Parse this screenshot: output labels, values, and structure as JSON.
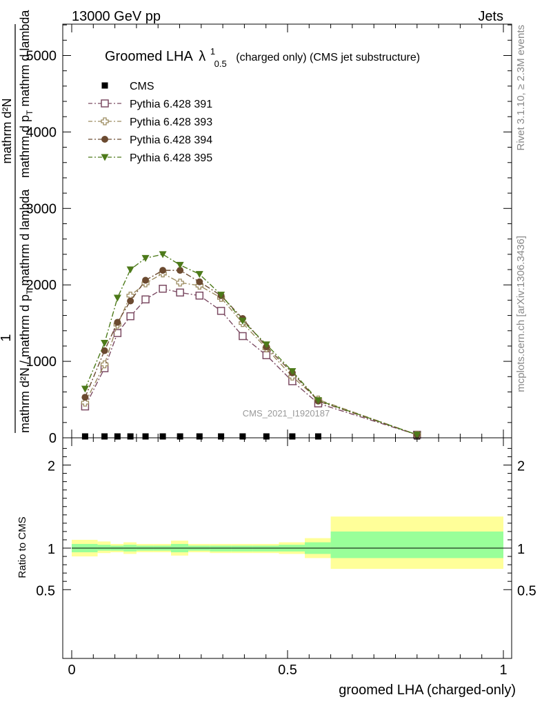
{
  "header": {
    "left": "13000 GeV pp",
    "right": "Jets"
  },
  "side_labels": {
    "rivet": "Rivet 3.1.10, ≥ 2.3M events",
    "mcplots": "mcplots.cern.ch [arXiv:1306.3436]"
  },
  "watermark": "CMS_2021_I1920187",
  "chart_data": [
    {
      "type": "line",
      "title": {
        "main": "Groomed LHA",
        "symbol": "λ",
        "sup": "1",
        "sub": "0.5",
        "rest": "(charged only) (CMS jet substructure)"
      },
      "ylabel": {
        "one": "1",
        "denominator": "mathrm d²N / mathrm d p",
        "denominator_sub": "T",
        "denominator_tail": " mathrm d lambda",
        "numerator": "mathrm d²N",
        "numerator_mid": "mathrm d p",
        "numerator_mid_sub": "T",
        "numerator_tail": " mathrm d lambda"
      },
      "ylim": [
        0,
        5400
      ],
      "xlim": [
        -0.02,
        1.02
      ],
      "yticks": [
        0,
        1000,
        2000,
        3000,
        4000,
        5000
      ],
      "ytick_labels": [
        "0",
        "1000",
        "2000",
        "3000",
        "4000",
        "5000"
      ],
      "legend_position": "top-left",
      "x": [
        0.031,
        0.076,
        0.106,
        0.136,
        0.171,
        0.211,
        0.251,
        0.296,
        0.346,
        0.396,
        0.451,
        0.511,
        0.571,
        0.8
      ],
      "series": [
        {
          "name": "CMS",
          "marker": "square-filled",
          "color": "#000000",
          "values": [
            0,
            0,
            0,
            0,
            0,
            0,
            0,
            0,
            0,
            0,
            0,
            0,
            0,
            0
          ]
        },
        {
          "name": "Pythia 6.428 391",
          "marker": "square-open",
          "color": "#7b4a62",
          "values": [
            410,
            910,
            1370,
            1590,
            1810,
            1950,
            1900,
            1860,
            1660,
            1330,
            1080,
            740,
            450,
            40
          ]
        },
        {
          "name": "Pythia 6.428 393",
          "marker": "cross-open",
          "color": "#9b8a5e",
          "values": [
            460,
            960,
            1480,
            1860,
            2020,
            2150,
            2030,
            1990,
            1830,
            1500,
            1170,
            800,
            500,
            40
          ]
        },
        {
          "name": "Pythia 6.428 394",
          "marker": "circle-filled",
          "color": "#6b4a30",
          "values": [
            530,
            1140,
            1510,
            1790,
            2060,
            2190,
            2190,
            2040,
            1860,
            1560,
            1190,
            850,
            480,
            40
          ]
        },
        {
          "name": "Pythia 6.428 395",
          "marker": "triangle-down-filled",
          "color": "#4d7a1a",
          "values": [
            640,
            1240,
            1830,
            2200,
            2350,
            2400,
            2260,
            2140,
            1870,
            1530,
            1220,
            870,
            490,
            40
          ]
        }
      ]
    },
    {
      "type": "area",
      "ylabel": "Ratio to CMS",
      "xlabel": "groomed LHA (charged-only)",
      "ylim": [
        0.35,
        2.3
      ],
      "xlim": [
        -0.02,
        1.02
      ],
      "yticks": [
        0.5,
        1,
        2
      ],
      "ytick_labels": [
        "0.5",
        "1",
        "2"
      ],
      "xticks": [
        0,
        0.5,
        1
      ],
      "xtick_labels": [
        "0",
        "0.5",
        "1"
      ],
      "reference_line": 1,
      "band_colors": {
        "inner": "#99ff99",
        "outer": "#ffff99"
      },
      "bins": [
        {
          "x0": 0.0,
          "x1": 0.06,
          "inner": [
            0.95,
            1.05
          ],
          "outer": [
            0.9,
            1.1
          ]
        },
        {
          "x0": 0.06,
          "x1": 0.09,
          "inner": [
            0.97,
            1.04
          ],
          "outer": [
            0.94,
            1.08
          ]
        },
        {
          "x0": 0.09,
          "x1": 0.12,
          "inner": [
            0.97,
            1.03
          ],
          "outer": [
            0.95,
            1.05
          ]
        },
        {
          "x0": 0.12,
          "x1": 0.15,
          "inner": [
            0.96,
            1.04
          ],
          "outer": [
            0.93,
            1.07
          ]
        },
        {
          "x0": 0.15,
          "x1": 0.19,
          "inner": [
            0.97,
            1.03
          ],
          "outer": [
            0.95,
            1.05
          ]
        },
        {
          "x0": 0.19,
          "x1": 0.23,
          "inner": [
            0.97,
            1.03
          ],
          "outer": [
            0.95,
            1.05
          ]
        },
        {
          "x0": 0.23,
          "x1": 0.27,
          "inner": [
            0.95,
            1.05
          ],
          "outer": [
            0.91,
            1.09
          ]
        },
        {
          "x0": 0.27,
          "x1": 0.32,
          "inner": [
            0.97,
            1.03
          ],
          "outer": [
            0.95,
            1.05
          ]
        },
        {
          "x0": 0.32,
          "x1": 0.37,
          "inner": [
            0.96,
            1.03
          ],
          "outer": [
            0.94,
            1.05
          ]
        },
        {
          "x0": 0.37,
          "x1": 0.42,
          "inner": [
            0.96,
            1.03
          ],
          "outer": [
            0.94,
            1.05
          ]
        },
        {
          "x0": 0.42,
          "x1": 0.48,
          "inner": [
            0.96,
            1.03
          ],
          "outer": [
            0.94,
            1.05
          ]
        },
        {
          "x0": 0.48,
          "x1": 0.54,
          "inner": [
            0.96,
            1.04
          ],
          "outer": [
            0.93,
            1.07
          ]
        },
        {
          "x0": 0.54,
          "x1": 0.6,
          "inner": [
            0.93,
            1.07
          ],
          "outer": [
            0.88,
            1.12
          ]
        },
        {
          "x0": 0.6,
          "x1": 1.0,
          "inner": [
            0.88,
            1.2
          ],
          "outer": [
            0.75,
            1.38
          ]
        }
      ]
    }
  ]
}
